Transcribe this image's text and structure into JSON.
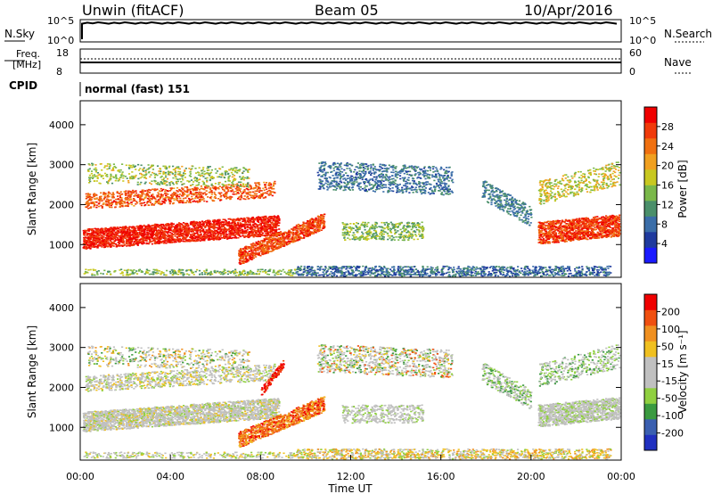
{
  "header": {
    "station": "Unwin (fitACF)",
    "beam": "Beam 05",
    "date": "10/Apr/2016"
  },
  "noise_panel": {
    "left_label": "N.Sky",
    "right_label": "N.Search",
    "left_ticks": [
      "10^5",
      "10^0"
    ],
    "right_ticks": [
      "10^5",
      "10^0"
    ]
  },
  "freq_panel": {
    "left_label_line1": "Freq.",
    "left_label_line2": "[MHz]",
    "right_label": "Nave",
    "left_ticks": [
      "18",
      "8"
    ],
    "right_ticks": [
      "60",
      "0"
    ],
    "cpid_label": "CPID",
    "cpid_value": "normal (fast) 151"
  },
  "colors": {
    "power": [
      "#1a1aff",
      "#1f3a9e",
      "#3a6da8",
      "#4a8f6a",
      "#7ab84a",
      "#c8c820",
      "#f0a020",
      "#f07010",
      "#f03a0a",
      "#f00000"
    ],
    "velocity": [
      "#2030c0",
      "#3a5fb0",
      "#3a9a40",
      "#90d040",
      "#c0c0c0",
      "#c0c0c0",
      "#f0c020",
      "#f09020",
      "#f05010",
      "#f00000"
    ]
  },
  "chart_data": [
    {
      "type": "heatmap",
      "quantity": "power",
      "xlabel": "",
      "ylabel": "Slant Range [km]",
      "yticks": [
        "4000",
        "3000",
        "2000",
        "1000"
      ],
      "xticks": [],
      "colorbar_label": "Power [dB]",
      "colorbar_ticks": [
        "28",
        "24",
        "20",
        "16",
        "12",
        "8",
        "4"
      ],
      "ylim": [
        180,
        4600
      ],
      "xlim_hours": [
        0,
        24
      ]
    },
    {
      "type": "heatmap",
      "quantity": "velocity",
      "xlabel": "Time UT",
      "ylabel": "Slant Range [km]",
      "yticks": [
        "4000",
        "3000",
        "2000",
        "1000"
      ],
      "xticks": [
        "00:00",
        "04:00",
        "08:00",
        "12:00",
        "16:00",
        "20:00",
        "00:00"
      ],
      "colorbar_label": "Velocity [m s⁻¹]",
      "colorbar_ticks": [
        "200",
        "100",
        "50",
        "15",
        "-15",
        "-50",
        "-100",
        "-200"
      ],
      "ylim": [
        180,
        4600
      ],
      "xlim_hours": [
        0,
        24
      ]
    }
  ]
}
